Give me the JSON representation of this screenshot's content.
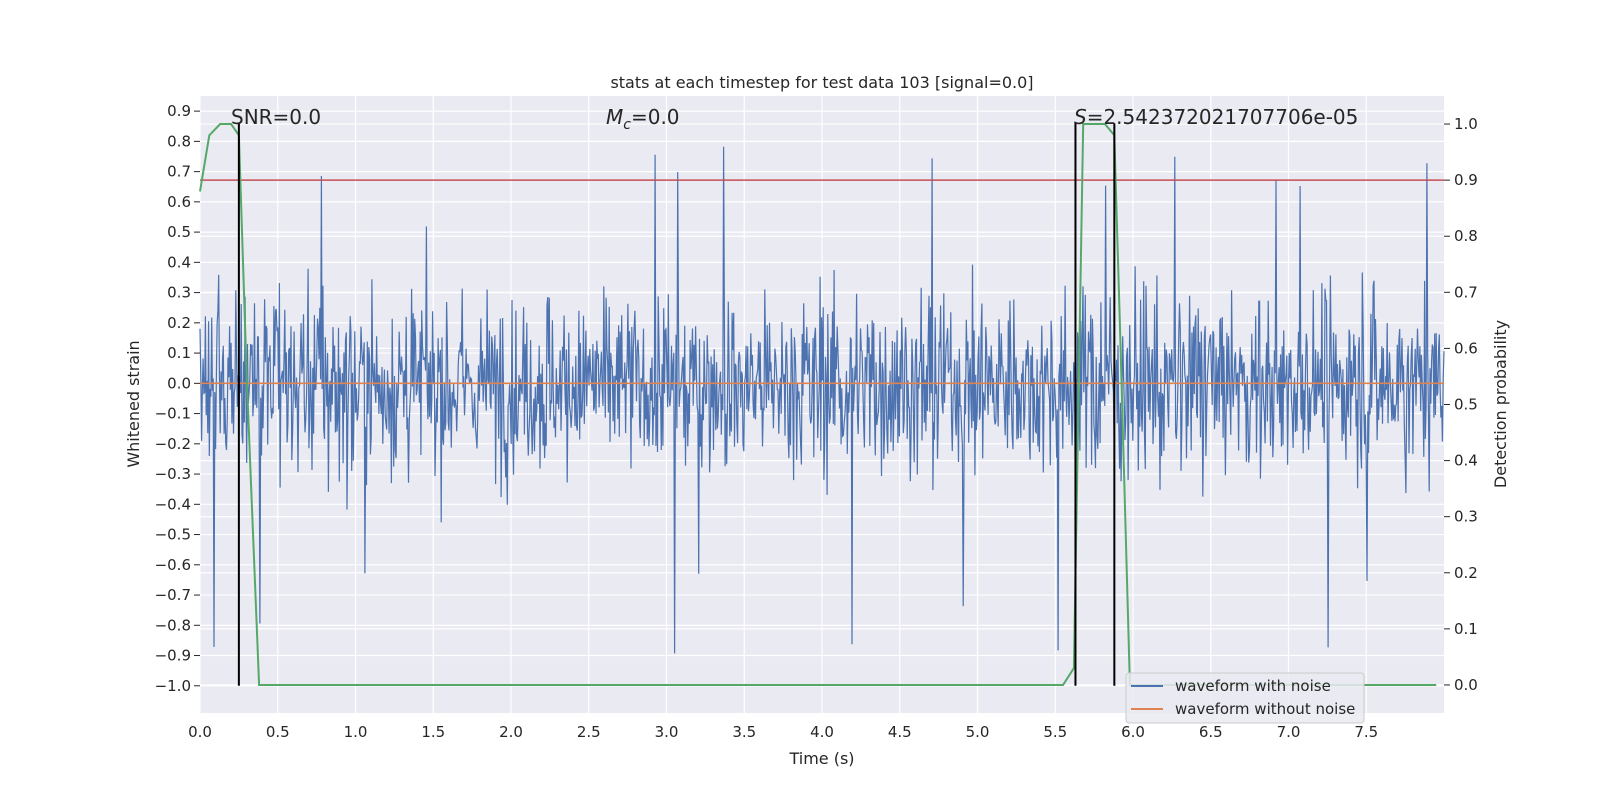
{
  "chart_data": {
    "type": "line",
    "title": "stats at each timestep for test data 103 [signal=0.0]",
    "xlabel": "Time (s)",
    "ylabel_left": "Whitened strain",
    "ylabel_right": "Detection probability",
    "xlim": [
      0.0,
      8.0
    ],
    "ylim_left": [
      -1.09,
      0.95
    ],
    "ylim_right": [
      -0.05,
      1.05
    ],
    "xticks": [
      "0.0",
      "0.5",
      "1.0",
      "1.5",
      "2.0",
      "2.5",
      "3.0",
      "3.5",
      "4.0",
      "4.5",
      "5.0",
      "5.5",
      "6.0",
      "6.5",
      "7.0",
      "7.5"
    ],
    "yticks_left": [
      "0.9",
      "0.8",
      "0.7",
      "0.6",
      "0.5",
      "0.4",
      "0.3",
      "0.2",
      "0.1",
      "0.0",
      "−0.1",
      "−0.2",
      "−0.3",
      "−0.4",
      "−0.5",
      "−0.6",
      "−0.7",
      "−0.8",
      "−0.9",
      "−1.0"
    ],
    "yticks_right": [
      "1.0",
      "0.9",
      "0.8",
      "0.7",
      "0.6",
      "0.5",
      "0.4",
      "0.3",
      "0.2",
      "0.1",
      "0.0"
    ],
    "annotations": {
      "snr": "SNR=0.0",
      "mc_symbol": "M",
      "mc_sub": "c",
      "mc_value": "=0.0",
      "s_symbol": "S",
      "s_value": "=2.542372021707706e-05"
    },
    "legend": {
      "placement": "bottom-right",
      "entries": [
        {
          "label": "waveform with noise",
          "color": "#4c72b0"
        },
        {
          "label": "waveform without noise",
          "color": "#dd8452"
        }
      ]
    },
    "series": [
      {
        "name": "waveform with noise",
        "axis": "left",
        "color": "#4c72b0",
        "kind": "noise",
        "envelope_approx": [
          -0.5,
          0.5
        ],
        "peaks_max": 0.84,
        "peaks_min": -1.0
      },
      {
        "name": "waveform without noise",
        "axis": "left",
        "color": "#dd8452",
        "x": [
          0.0,
          8.0
        ],
        "y": [
          0.0,
          0.0
        ]
      },
      {
        "name": "detection probability",
        "axis": "right",
        "color": "#55a868",
        "x": [
          0.0,
          0.06,
          0.13,
          0.2,
          0.25,
          0.3,
          0.38,
          5.55,
          5.62,
          5.68,
          5.75,
          5.82,
          5.88,
          5.92,
          5.98,
          7.95
        ],
        "y": [
          0.88,
          0.98,
          1.0,
          1.0,
          0.98,
          0.55,
          0.0,
          0.0,
          0.03,
          1.0,
          1.0,
          1.0,
          0.98,
          0.6,
          0.0,
          0.0
        ]
      },
      {
        "name": "threshold",
        "axis": "right",
        "color": "#c44e52",
        "x": [
          0.0,
          8.0
        ],
        "y": [
          0.9,
          0.9
        ]
      }
    ],
    "vlines": [
      {
        "x": 0.25,
        "y_range": [
          -1.0,
          0.86
        ]
      },
      {
        "x": 5.63,
        "y_range": [
          -1.0,
          0.86
        ]
      },
      {
        "x": 5.88,
        "y_range": [
          -1.0,
          0.86
        ]
      }
    ],
    "colors": {
      "axes_bg": "#eaeaf2",
      "grid": "#ffffff",
      "text": "#262626",
      "vline": "#000000"
    }
  }
}
